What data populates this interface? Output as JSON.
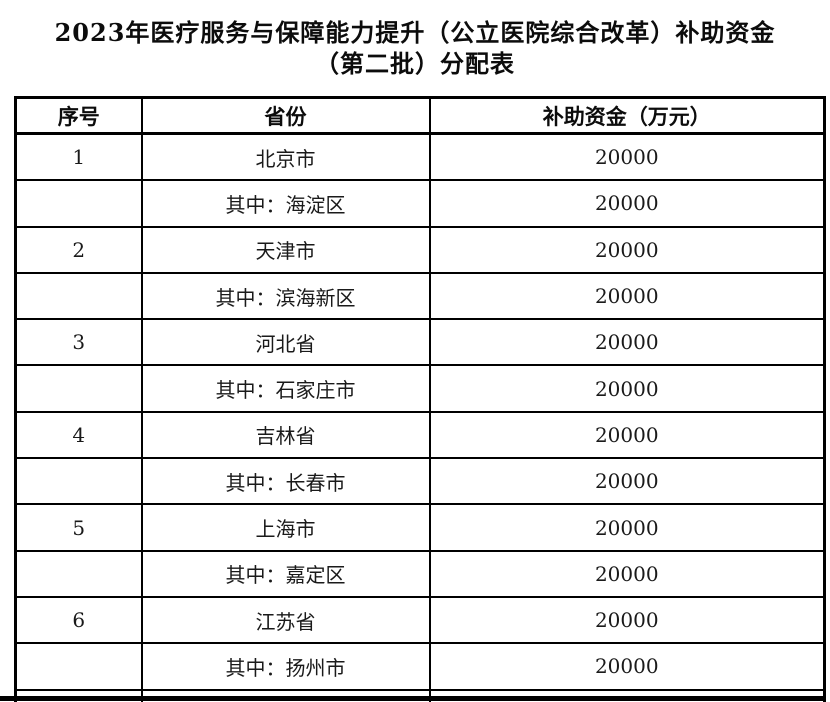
{
  "title": {
    "line1": "2023年医疗服务与保障能力提升（公立医院综合改革）补助资金",
    "line2": "（第二批）分配表"
  },
  "table": {
    "headers": [
      "序号",
      "省份",
      "补助资金（万元）"
    ],
    "rows": [
      {
        "no": "1",
        "region": "北京市",
        "amount": "20000"
      },
      {
        "no": "",
        "region": "其中：海淀区",
        "amount": "20000"
      },
      {
        "no": "2",
        "region": "天津市",
        "amount": "20000"
      },
      {
        "no": "",
        "region": "其中：滨海新区",
        "amount": "20000"
      },
      {
        "no": "3",
        "region": "河北省",
        "amount": "20000"
      },
      {
        "no": "",
        "region": "其中：石家庄市",
        "amount": "20000"
      },
      {
        "no": "4",
        "region": "吉林省",
        "amount": "20000"
      },
      {
        "no": "",
        "region": "其中：长春市",
        "amount": "20000"
      },
      {
        "no": "5",
        "region": "上海市",
        "amount": "20000"
      },
      {
        "no": "",
        "region": "其中：嘉定区",
        "amount": "20000"
      },
      {
        "no": "6",
        "region": "江苏省",
        "amount": "20000"
      },
      {
        "no": "",
        "region": "其中：扬州市",
        "amount": "20000"
      }
    ]
  },
  "colors": {
    "background": "#ffffff",
    "border": "#000000",
    "text": "#1a1a1a"
  }
}
